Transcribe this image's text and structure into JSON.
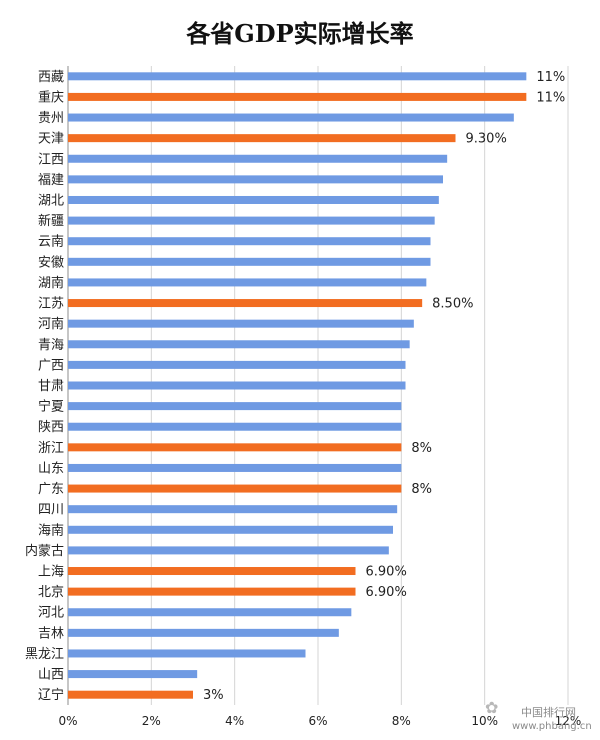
{
  "chart_data": {
    "type": "bar",
    "orientation": "horizontal",
    "title": "各省GDP实际增长率",
    "xlabel": "",
    "ylabel": "",
    "xlim": [
      0,
      12
    ],
    "ticks": [
      "0%",
      "2%",
      "4%",
      "6%",
      "8%",
      "10%",
      "12%"
    ],
    "tick_values": [
      0,
      2,
      4,
      6,
      8,
      10,
      12
    ],
    "grid": true,
    "legend": "none",
    "colors": {
      "default": "#6f9ae3",
      "highlight": "#f26d21"
    },
    "categories": [
      "西藏",
      "重庆",
      "贵州",
      "天津",
      "江西",
      "福建",
      "湖北",
      "新疆",
      "云南",
      "安徽",
      "湖南",
      "江苏",
      "河南",
      "青海",
      "广西",
      "甘肃",
      "宁夏",
      "陕西",
      "浙江",
      "山东",
      "广东",
      "四川",
      "海南",
      "内蒙古",
      "上海",
      "北京",
      "河北",
      "吉林",
      "黑龙江",
      "山西",
      "辽宁"
    ],
    "values": [
      11,
      11,
      10.7,
      9.3,
      9.1,
      9.0,
      8.9,
      8.8,
      8.7,
      8.7,
      8.6,
      8.5,
      8.3,
      8.2,
      8.1,
      8.1,
      8.0,
      8.0,
      8.0,
      8.0,
      8.0,
      7.9,
      7.8,
      7.7,
      6.9,
      6.9,
      6.8,
      6.5,
      5.7,
      3.1,
      3.0
    ],
    "highlight": [
      false,
      true,
      false,
      true,
      false,
      false,
      false,
      false,
      false,
      false,
      false,
      true,
      false,
      false,
      false,
      false,
      false,
      false,
      true,
      false,
      true,
      false,
      false,
      false,
      true,
      true,
      false,
      false,
      false,
      false,
      true
    ],
    "data_labels": [
      "11%",
      "11%",
      "",
      "9.30%",
      "",
      "",
      "",
      "",
      "",
      "",
      "",
      "8.50%",
      "",
      "",
      "",
      "",
      "",
      "",
      "8%",
      "",
      "8%",
      "",
      "",
      "",
      "6.90%",
      "6.90%",
      "",
      "",
      "",
      "",
      "3%"
    ]
  },
  "watermark": {
    "text_1": "中国排行网",
    "text_2": "www.phbang.cn"
  }
}
